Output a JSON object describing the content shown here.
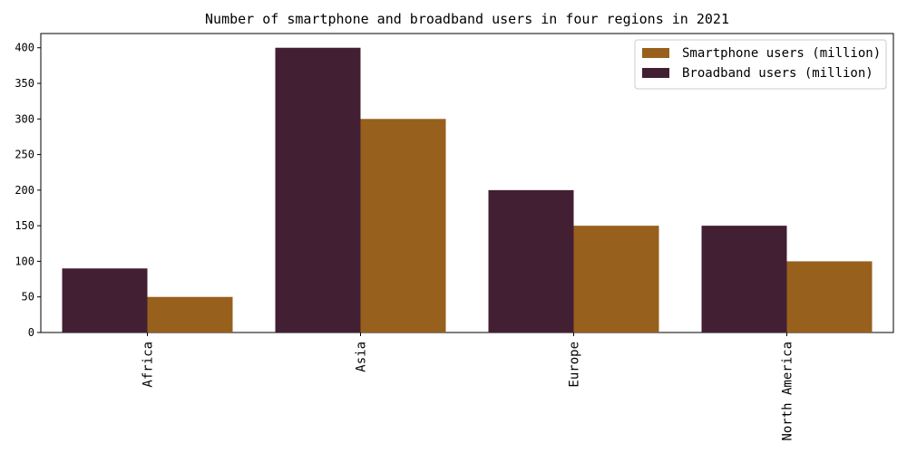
{
  "chart_data": {
    "type": "bar",
    "title": "Number of smartphone and broadband users in four regions in 2021",
    "xlabel": "",
    "ylabel": "",
    "categories": [
      "Africa",
      "Asia",
      "Europe",
      "North America"
    ],
    "series": [
      {
        "name": "Broadband users (million)",
        "values": [
          90,
          400,
          200,
          150
        ],
        "color": "#421f33"
      },
      {
        "name": "Smartphone users (million)",
        "values": [
          50,
          300,
          150,
          100
        ],
        "color": "#98601d"
      }
    ],
    "legend_order": [
      "Smartphone users (million)",
      "Broadband users (million)"
    ],
    "ylim": [
      0,
      420
    ],
    "yticks": [
      0,
      50,
      100,
      150,
      200,
      250,
      300,
      350,
      400
    ],
    "grid": false,
    "legend_position": "top-right"
  }
}
